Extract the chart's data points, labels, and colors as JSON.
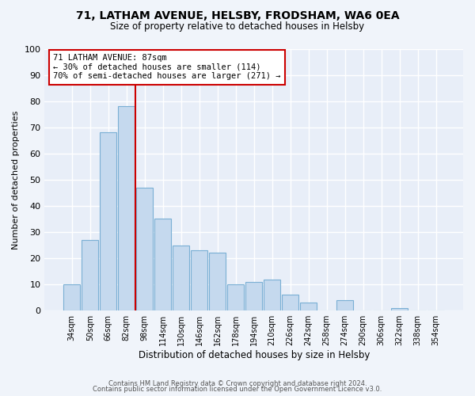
{
  "title": "71, LATHAM AVENUE, HELSBY, FRODSHAM, WA6 0EA",
  "subtitle": "Size of property relative to detached houses in Helsby",
  "xlabel": "Distribution of detached houses by size in Helsby",
  "ylabel": "Number of detached properties",
  "footer_line1": "Contains HM Land Registry data © Crown copyright and database right 2024.",
  "footer_line2": "Contains public sector information licensed under the Open Government Licence v3.0.",
  "bar_labels": [
    "34sqm",
    "50sqm",
    "66sqm",
    "82sqm",
    "98sqm",
    "114sqm",
    "130sqm",
    "146sqm",
    "162sqm",
    "178sqm",
    "194sqm",
    "210sqm",
    "226sqm",
    "242sqm",
    "258sqm",
    "274sqm",
    "290sqm",
    "306sqm",
    "322sqm",
    "338sqm",
    "354sqm"
  ],
  "bar_values": [
    10,
    27,
    68,
    78,
    47,
    35,
    25,
    23,
    22,
    10,
    11,
    12,
    6,
    3,
    0,
    4,
    0,
    0,
    1,
    0,
    0
  ],
  "bar_color": "#c5d9ee",
  "bar_edge_color": "#7aafd4",
  "vline_x": 3.5,
  "vline_color": "#cc0000",
  "annotation_title": "71 LATHAM AVENUE: 87sqm",
  "annotation_line1": "← 30% of detached houses are smaller (114)",
  "annotation_line2": "70% of semi-detached houses are larger (271) →",
  "annotation_box_color": "#cc0000",
  "background_color": "#f0f4fa",
  "plot_bg_color": "#e8eef8",
  "ylim": [
    0,
    100
  ],
  "yticks": [
    0,
    10,
    20,
    30,
    40,
    50,
    60,
    70,
    80,
    90,
    100
  ]
}
